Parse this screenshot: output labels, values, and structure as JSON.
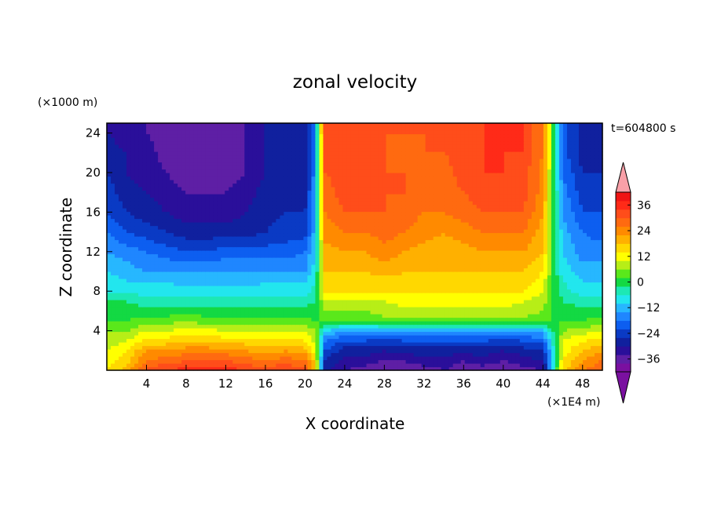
{
  "chart_data": {
    "type": "heatmap",
    "title": "zonal velocity",
    "xlabel": "X coordinate",
    "ylabel": "Z coordinate",
    "x_unit": "(×1E4 m)",
    "y_unit": "(×1000 m)",
    "time_label": "t=604800 s",
    "xlim": [
      0,
      50
    ],
    "ylim": [
      0,
      25
    ],
    "x_ticks": [
      4,
      8,
      12,
      16,
      20,
      24,
      28,
      32,
      36,
      40,
      44,
      48
    ],
    "y_ticks": [
      4,
      8,
      12,
      16,
      20,
      24
    ],
    "colorbar": {
      "min": -42,
      "max": 42,
      "step": 4,
      "labels": [
        36,
        24,
        12,
        0,
        -12,
        -24,
        -36
      ],
      "colors": [
        "#7a10a0",
        "#5e1fa5",
        "#2a0f9a",
        "#10209e",
        "#0a3ac4",
        "#0d5ef0",
        "#1f86ff",
        "#27b7ff",
        "#22e6ee",
        "#1de8b4",
        "#13d943",
        "#5ae81b",
        "#b7ee17",
        "#ffff00",
        "#ffd800",
        "#ffb000",
        "#ff8a00",
        "#ff6a10",
        "#ff4d1a",
        "#ff2a18",
        "#f01414"
      ],
      "arrow_low_color": "#7a10a0",
      "arrow_high_color": "#f9a0a8"
    },
    "description_grid": {
      "x": [
        0,
        2,
        4,
        6,
        8,
        10,
        12,
        14,
        16,
        18,
        20,
        21,
        22,
        24,
        26,
        28,
        30,
        32,
        34,
        36,
        38,
        40,
        42,
        44,
        45,
        46,
        48,
        50
      ],
      "z": [
        0,
        1,
        2,
        3,
        4,
        5,
        6,
        7,
        8,
        9,
        10,
        12,
        14,
        16,
        18,
        20,
        22,
        24,
        25
      ],
      "u": [
        [
          14,
          20,
          32,
          34,
          36,
          36,
          36,
          34,
          32,
          34,
          32,
          20,
          -28,
          -34,
          -36,
          -38,
          -36,
          -36,
          -34,
          -36,
          -36,
          -38,
          -36,
          -34,
          -8,
          16,
          26,
          30
        ],
        [
          12,
          16,
          26,
          28,
          30,
          30,
          30,
          28,
          26,
          28,
          26,
          16,
          -26,
          -32,
          -32,
          -34,
          -34,
          -32,
          -32,
          -34,
          -32,
          -34,
          -32,
          -30,
          -10,
          14,
          22,
          26
        ],
        [
          10,
          14,
          22,
          22,
          24,
          24,
          24,
          22,
          20,
          22,
          20,
          12,
          -22,
          -28,
          -28,
          -30,
          -28,
          -28,
          -28,
          -28,
          -28,
          -30,
          -28,
          -26,
          -8,
          12,
          18,
          22
        ],
        [
          8,
          10,
          16,
          16,
          18,
          18,
          16,
          16,
          16,
          16,
          14,
          8,
          -18,
          -22,
          -22,
          -24,
          -22,
          -22,
          -22,
          -22,
          -22,
          -24,
          -22,
          -20,
          -6,
          10,
          14,
          16
        ],
        [
          6,
          6,
          10,
          10,
          12,
          12,
          10,
          10,
          10,
          10,
          10,
          6,
          -10,
          -14,
          -14,
          -14,
          -12,
          -12,
          -12,
          -14,
          -14,
          -14,
          -14,
          -12,
          -2,
          6,
          8,
          10
        ],
        [
          2,
          2,
          4,
          4,
          6,
          4,
          4,
          4,
          4,
          4,
          4,
          2,
          2,
          2,
          2,
          4,
          4,
          4,
          4,
          4,
          4,
          4,
          4,
          4,
          2,
          2,
          2,
          4
        ],
        [
          0,
          0,
          0,
          0,
          0,
          0,
          0,
          0,
          0,
          0,
          0,
          0,
          6,
          6,
          6,
          8,
          8,
          8,
          8,
          8,
          8,
          8,
          8,
          6,
          2,
          0,
          0,
          0
        ],
        [
          -2,
          -2,
          -4,
          -4,
          -4,
          -4,
          -4,
          -4,
          -4,
          -4,
          -4,
          -2,
          10,
          10,
          10,
          10,
          12,
          12,
          12,
          12,
          12,
          12,
          10,
          8,
          2,
          -2,
          -4,
          -4
        ],
        [
          -6,
          -6,
          -8,
          -8,
          -8,
          -8,
          -8,
          -8,
          -8,
          -8,
          -8,
          -4,
          14,
          14,
          14,
          14,
          14,
          14,
          14,
          14,
          14,
          14,
          14,
          10,
          2,
          -4,
          -8,
          -8
        ],
        [
          -8,
          -10,
          -10,
          -10,
          -12,
          -12,
          -12,
          -12,
          -10,
          -10,
          -10,
          -6,
          16,
          16,
          16,
          16,
          16,
          18,
          16,
          16,
          16,
          16,
          16,
          12,
          2,
          -6,
          -10,
          -10
        ],
        [
          -10,
          -12,
          -14,
          -14,
          -14,
          -14,
          -14,
          -14,
          -14,
          -14,
          -14,
          -8,
          18,
          18,
          18,
          20,
          18,
          18,
          18,
          18,
          18,
          18,
          18,
          14,
          2,
          -8,
          -12,
          -12
        ],
        [
          -14,
          -16,
          -18,
          -20,
          -22,
          -22,
          -20,
          -20,
          -20,
          -20,
          -18,
          -10,
          20,
          22,
          22,
          24,
          22,
          20,
          20,
          20,
          22,
          22,
          22,
          18,
          2,
          -10,
          -16,
          -16
        ],
        [
          -18,
          -22,
          -24,
          -26,
          -28,
          -28,
          -28,
          -28,
          -26,
          -24,
          -24,
          -12,
          24,
          26,
          26,
          28,
          26,
          24,
          22,
          24,
          26,
          26,
          26,
          20,
          2,
          -12,
          -18,
          -20
        ],
        [
          -22,
          -26,
          -28,
          -30,
          -32,
          -32,
          -32,
          -30,
          -28,
          -26,
          -26,
          -14,
          26,
          30,
          30,
          30,
          28,
          26,
          26,
          28,
          30,
          30,
          30,
          22,
          2,
          -14,
          -22,
          -22
        ],
        [
          -24,
          -28,
          -30,
          -32,
          -34,
          -34,
          -34,
          -32,
          -28,
          -28,
          -28,
          -14,
          28,
          32,
          32,
          30,
          30,
          28,
          28,
          30,
          32,
          32,
          32,
          24,
          2,
          -16,
          -24,
          -24
        ],
        [
          -26,
          -30,
          -32,
          -34,
          -36,
          -38,
          -36,
          -34,
          -30,
          -30,
          -30,
          -16,
          30,
          32,
          30,
          30,
          30,
          28,
          28,
          32,
          34,
          34,
          32,
          24,
          2,
          -18,
          -26,
          -26
        ],
        [
          -28,
          -30,
          -32,
          -36,
          -38,
          -38,
          -36,
          -34,
          -30,
          -30,
          -30,
          -16,
          30,
          32,
          32,
          30,
          28,
          30,
          30,
          32,
          34,
          34,
          34,
          26,
          2,
          -20,
          -28,
          -28
        ],
        [
          -30,
          -32,
          -34,
          -36,
          -38,
          -38,
          -36,
          -34,
          -30,
          -30,
          -30,
          -16,
          32,
          34,
          32,
          30,
          30,
          30,
          30,
          32,
          34,
          36,
          34,
          26,
          2,
          -20,
          -28,
          -30
        ],
        [
          -30,
          -32,
          -34,
          -36,
          -38,
          -38,
          -36,
          -34,
          -30,
          -30,
          -30,
          -16,
          32,
          34,
          32,
          30,
          30,
          30,
          30,
          32,
          34,
          36,
          34,
          26,
          2,
          -20,
          -28,
          -30
        ]
      ]
    }
  }
}
